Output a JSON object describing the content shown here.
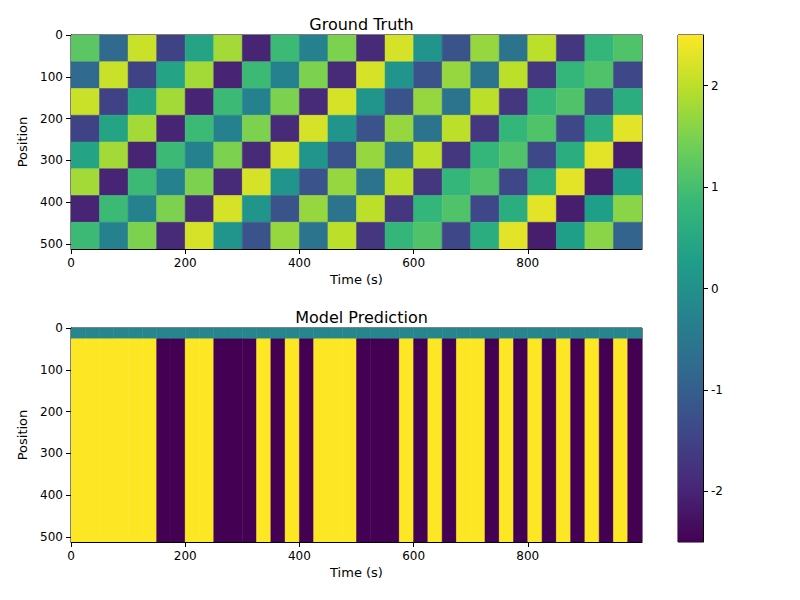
{
  "chart_data": {
    "type": "heatmap",
    "colorbar": {
      "range": [
        -2.5,
        2.5
      ],
      "ticks": [
        -2,
        -1,
        0,
        1,
        2
      ]
    },
    "panels": [
      {
        "title": "Ground Truth",
        "x_label": "Time (s)",
        "y_label": "Position",
        "xlim": [
          0,
          1000
        ],
        "ylim": [
          512,
          0
        ],
        "xticks": [
          0,
          200,
          400,
          600,
          800
        ],
        "yticks": [
          0,
          100,
          200,
          300,
          400,
          500
        ],
        "x_edges": [
          0,
          50,
          100,
          150,
          200,
          250,
          300,
          350,
          400,
          450,
          500,
          550,
          600,
          650,
          700,
          750,
          800,
          850,
          900,
          950,
          1000
        ],
        "y_edges": [
          0,
          64,
          128,
          192,
          256,
          320,
          384,
          448,
          512
        ],
        "cells": [
          [
            1.2,
            -0.8,
            2.1,
            -1.5,
            0.4,
            1.8,
            -2.0,
            0.9,
            -0.3,
            1.5,
            -1.9,
            2.2,
            0.1,
            -1.2,
            1.7,
            -0.6,
            2.0,
            -1.7,
            0.8,
            1.1
          ],
          [
            -0.8,
            2.1,
            -1.5,
            0.4,
            1.8,
            -2.0,
            0.9,
            -0.3,
            1.5,
            -1.9,
            2.2,
            0.1,
            -1.2,
            1.7,
            -0.6,
            2.0,
            -1.7,
            0.8,
            1.1,
            -1.4
          ],
          [
            2.1,
            -1.5,
            0.4,
            1.8,
            -2.0,
            0.9,
            -0.3,
            1.5,
            -1.9,
            2.2,
            0.1,
            -1.2,
            1.7,
            -0.6,
            2.0,
            -1.7,
            0.8,
            1.1,
            -1.4,
            0.6
          ],
          [
            -1.5,
            0.4,
            1.8,
            -2.0,
            0.9,
            -0.3,
            1.5,
            -1.9,
            2.2,
            0.1,
            -1.2,
            1.7,
            -0.6,
            2.0,
            -1.7,
            0.8,
            1.1,
            -1.4,
            0.6,
            2.3
          ],
          [
            0.4,
            1.8,
            -2.0,
            0.9,
            -0.3,
            1.5,
            -1.9,
            2.2,
            0.1,
            -1.2,
            1.7,
            -0.6,
            2.0,
            -1.7,
            0.8,
            1.1,
            -1.4,
            0.6,
            2.3,
            -2.1
          ],
          [
            1.8,
            -2.0,
            0.9,
            -0.3,
            1.5,
            -1.9,
            2.2,
            0.1,
            -1.2,
            1.7,
            -0.6,
            2.0,
            -1.7,
            0.8,
            1.1,
            -1.4,
            0.6,
            2.3,
            -2.1,
            0.3
          ],
          [
            -2.0,
            0.9,
            -0.3,
            1.5,
            -1.9,
            2.2,
            0.1,
            -1.2,
            1.7,
            -0.6,
            2.0,
            -1.7,
            0.8,
            1.1,
            -1.4,
            0.6,
            2.3,
            -2.1,
            0.3,
            1.6
          ],
          [
            0.9,
            -0.3,
            1.5,
            -1.9,
            2.2,
            0.1,
            -1.2,
            1.7,
            -0.6,
            2.0,
            -1.7,
            0.8,
            1.1,
            -1.4,
            0.6,
            2.3,
            -2.1,
            0.3,
            1.6,
            -0.9
          ]
        ]
      },
      {
        "title": "Model Prediction",
        "x_label": "Time (s)",
        "y_label": "Position",
        "xlim": [
          0,
          1000
        ],
        "ylim": [
          512,
          0
        ],
        "xticks": [
          0,
          200,
          400,
          600,
          800
        ],
        "yticks": [
          0,
          100,
          200,
          300,
          400,
          500
        ],
        "x_edges": [
          0,
          25,
          50,
          75,
          100,
          125,
          150,
          175,
          200,
          225,
          250,
          275,
          300,
          325,
          350,
          375,
          400,
          425,
          450,
          475,
          500,
          525,
          550,
          575,
          600,
          625,
          650,
          675,
          700,
          725,
          750,
          775,
          800,
          825,
          850,
          875,
          900,
          925,
          950,
          975,
          1000
        ],
        "y_edges": [
          0,
          26,
          512
        ],
        "cells": [
          [
            -0.2,
            -0.2,
            -0.2,
            -0.2,
            -0.2,
            -0.2,
            -0.2,
            -0.2,
            -0.2,
            -0.2,
            -0.2,
            -0.2,
            -0.2,
            -0.2,
            -0.2,
            -0.2,
            -0.2,
            -0.2,
            -0.2,
            -0.2,
            -0.2,
            -0.2,
            -0.2,
            -0.2,
            -0.2,
            -0.2,
            -0.2,
            -0.2,
            -0.2,
            -0.2,
            -0.2,
            -0.2,
            -0.2,
            -0.2,
            -0.2,
            -0.2,
            -0.2,
            -0.2,
            -0.2,
            -0.2
          ],
          [
            2.5,
            2.5,
            2.5,
            2.5,
            2.5,
            2.5,
            -2.5,
            -2.5,
            2.5,
            2.5,
            -2.5,
            -2.5,
            -2.5,
            2.5,
            -2.5,
            2.5,
            -2.5,
            2.5,
            2.5,
            2.5,
            -2.5,
            -2.5,
            -2.5,
            2.5,
            -2.5,
            2.5,
            -2.5,
            2.5,
            2.5,
            -2.5,
            2.5,
            -2.5,
            2.5,
            -2.5,
            2.5,
            -2.5,
            2.5,
            -2.5,
            2.5,
            -2.5
          ]
        ]
      }
    ]
  }
}
